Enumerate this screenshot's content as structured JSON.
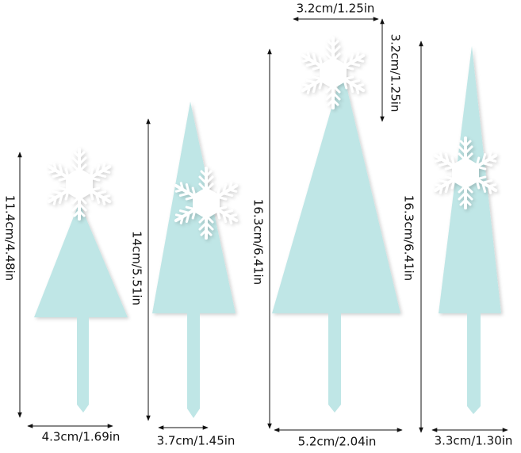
{
  "colors": {
    "tree": "#bfe6e6",
    "snowflake": "#ffffff",
    "text": "#111111",
    "background": "#ffffff"
  },
  "toppers": [
    {
      "height": "11.4cm/4.48in",
      "width": "4.3cm/1.69in"
    },
    {
      "height": "14cm/5.51in",
      "width": "3.7cm/1.45in"
    },
    {
      "height": "16.3cm/6.41in",
      "width": "5.2cm/2.04in",
      "snowflake_width": "3.2cm/1.25in",
      "snowflake_height": "3.2cm/1.25in"
    },
    {
      "height": "16.3cm/6.41in",
      "width": "3.3cm/1.30in"
    }
  ]
}
